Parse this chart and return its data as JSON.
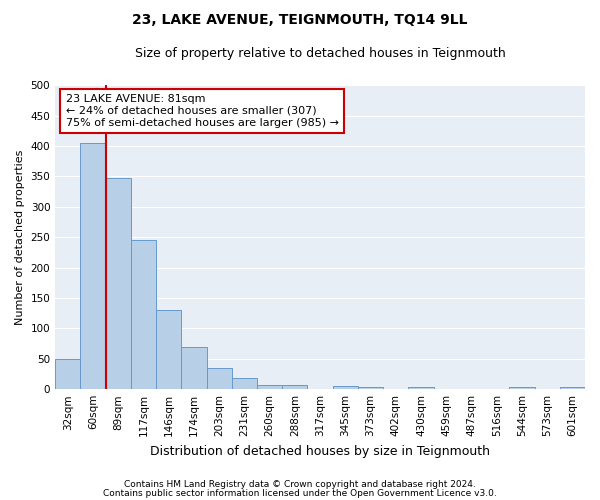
{
  "title": "23, LAKE AVENUE, TEIGNMOUTH, TQ14 9LL",
  "subtitle": "Size of property relative to detached houses in Teignmouth",
  "xlabel": "Distribution of detached houses by size in Teignmouth",
  "ylabel": "Number of detached properties",
  "categories": [
    "32sqm",
    "60sqm",
    "89sqm",
    "117sqm",
    "146sqm",
    "174sqm",
    "203sqm",
    "231sqm",
    "260sqm",
    "288sqm",
    "317sqm",
    "345sqm",
    "373sqm",
    "402sqm",
    "430sqm",
    "459sqm",
    "487sqm",
    "516sqm",
    "544sqm",
    "573sqm",
    "601sqm"
  ],
  "values": [
    50,
    405,
    348,
    245,
    130,
    70,
    35,
    18,
    7,
    7,
    0,
    6,
    4,
    0,
    3,
    0,
    0,
    0,
    4,
    0,
    3
  ],
  "bar_color": "#b8cfe8",
  "bar_edge_color": "#6699cc",
  "annotation_text1": "23 LAKE AVENUE: 81sqm",
  "annotation_text2": "← 24% of detached houses are smaller (307)",
  "annotation_text3": "75% of semi-detached houses are larger (985) →",
  "annotation_box_facecolor": "#ffffff",
  "annotation_box_edgecolor": "#cc0000",
  "highlight_line_color": "#cc0000",
  "ylim": [
    0,
    500
  ],
  "yticks": [
    0,
    50,
    100,
    150,
    200,
    250,
    300,
    350,
    400,
    450,
    500
  ],
  "footer1": "Contains HM Land Registry data © Crown copyright and database right 2024.",
  "footer2": "Contains public sector information licensed under the Open Government Licence v3.0.",
  "bg_color": "#e8eef5",
  "title_fontsize": 10,
  "subtitle_fontsize": 9,
  "tick_fontsize": 7.5,
  "ylabel_fontsize": 8,
  "xlabel_fontsize": 9,
  "annotation_fontsize": 8,
  "footer_fontsize": 6.5
}
